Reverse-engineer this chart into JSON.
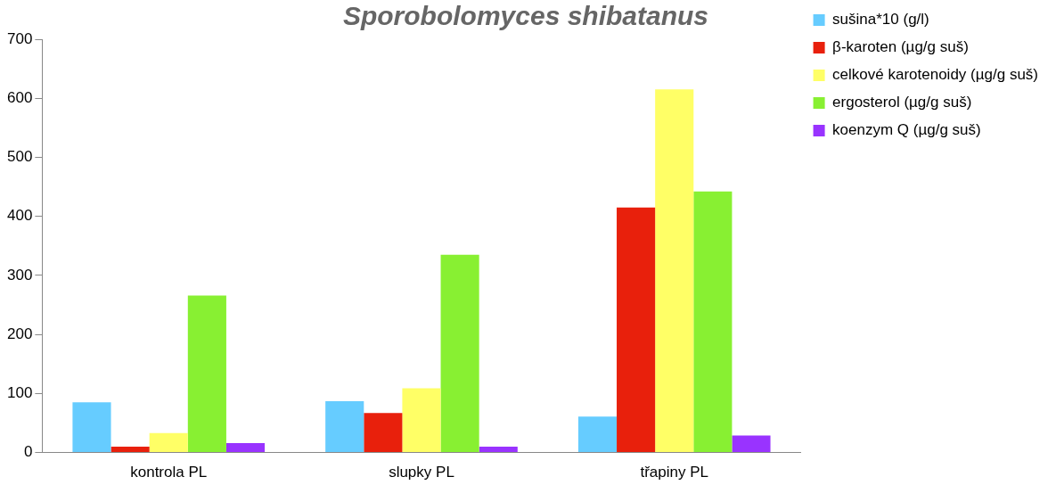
{
  "chart_data": {
    "type": "bar",
    "title": "Sporobolomyces shibatanus",
    "categories": [
      "kontrola PL",
      "slupky PL",
      "třapiny PL"
    ],
    "series": [
      {
        "name": "sušina*10 (g/l)",
        "color": "#66ccff",
        "values": [
          85,
          87,
          61
        ]
      },
      {
        "name": "β-karoten (µg/g suš)",
        "color": "#e8200c",
        "values": [
          10,
          67,
          415
        ]
      },
      {
        "name": "celkové karotenoidy (µg/g suš)",
        "color": "#ffff66",
        "values": [
          33,
          109,
          615
        ]
      },
      {
        "name": "ergosterol (µg/g suš)",
        "color": "#88f032",
        "values": [
          266,
          335,
          442
        ]
      },
      {
        "name": "koenzym Q (µg/g suš)",
        "color": "#9933ff",
        "values": [
          16,
          10,
          29
        ]
      }
    ],
    "ylim": [
      0,
      700
    ],
    "yticks": [
      0,
      100,
      200,
      300,
      400,
      500,
      600,
      700
    ],
    "grid": false,
    "legend": "right"
  }
}
